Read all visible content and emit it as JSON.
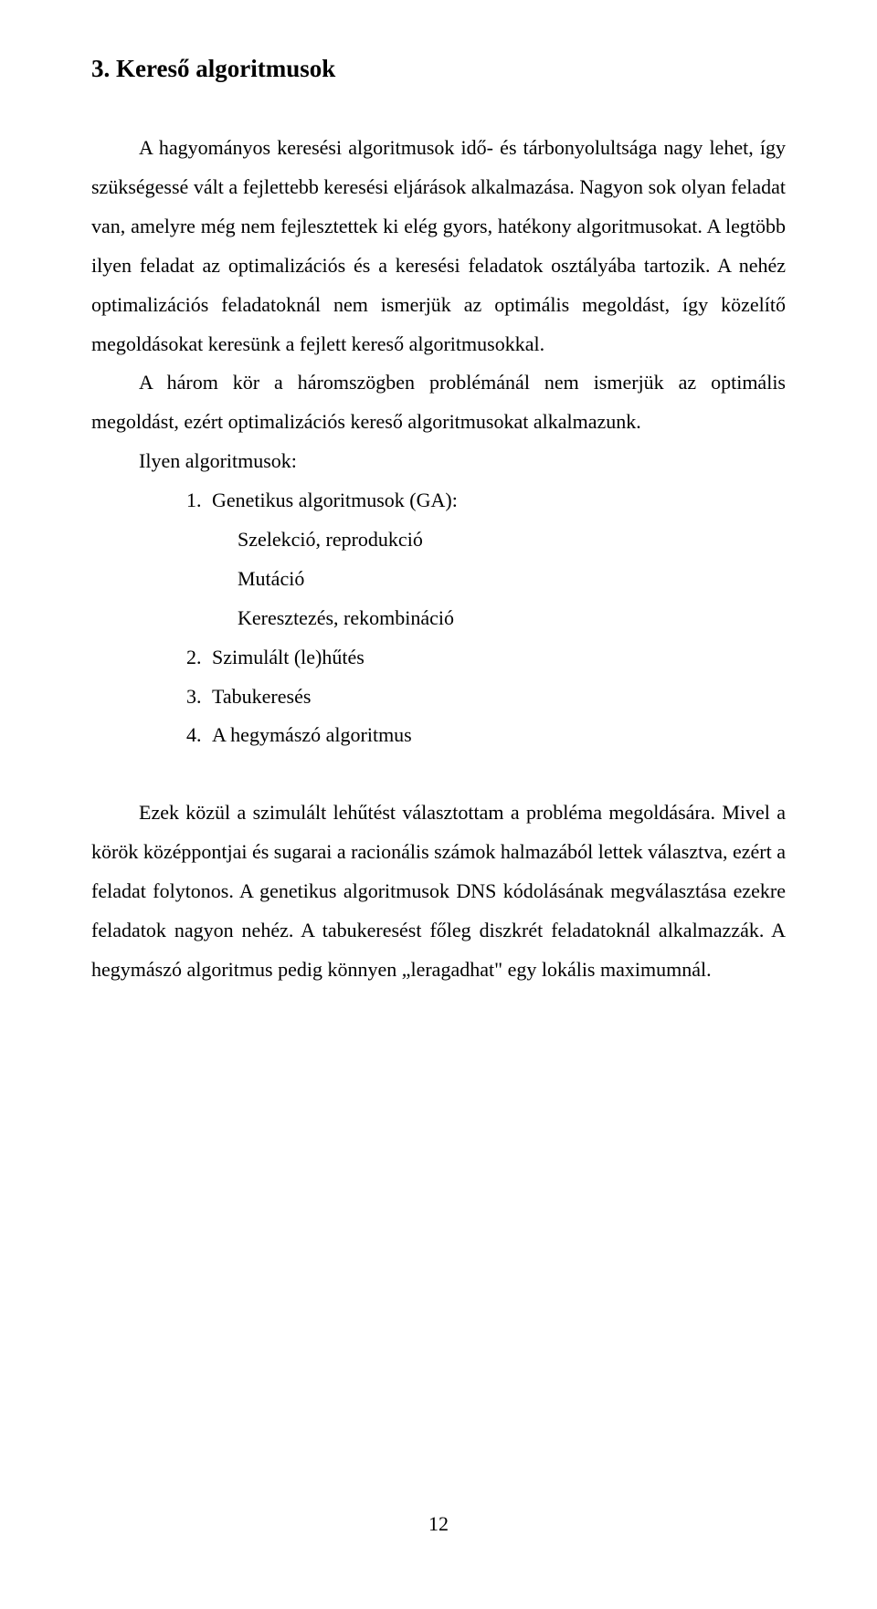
{
  "heading": "3. Kereső algoritmusok",
  "paragraphs": {
    "p1": "A hagyományos keresési algoritmusok idő- és tárbonyolultsága nagy lehet, így szükségessé vált a fejlettebb keresési eljárások alkalmazása. Nagyon sok olyan feladat van, amelyre még nem fejlesztettek ki elég gyors, hatékony algoritmusokat. A legtöbb ilyen feladat az optimalizációs és a keresési feladatok osztályába tartozik. A nehéz optimalizációs feladatoknál nem ismerjük az optimális megoldást, így közelítő megoldásokat keresünk a fejlett kereső algoritmusokkal.",
    "p2": "A három kör a háromszögben problémánál nem ismerjük az optimális megoldást, ezért optimalizációs kereső algoritmusokat alkalmazunk.",
    "list_intro": "Ilyen algoritmusok:",
    "p3": "Ezek közül a szimulált lehűtést választottam a probléma megoldására. Mivel a körök középpontjai és sugarai a racionális számok halmazából lettek választva, ezért a feladat folytonos. A genetikus algoritmusok DNS kódolásának megválasztása ezekre feladatok nagyon nehéz. A tabukeresést főleg diszkrét feladatoknál alkalmazzák. A hegymászó algoritmus pedig könnyen „leragadhat\" egy lokális maximumnál."
  },
  "list": {
    "items": [
      {
        "num": "1.",
        "text": "Genetikus algoritmusok (GA):"
      },
      {
        "num": "2.",
        "text": "Szimulált (le)hűtés"
      },
      {
        "num": "3.",
        "text": "Tabukeresés"
      },
      {
        "num": "4.",
        "text": "A hegymászó algoritmus"
      }
    ],
    "subitems": [
      "Szelekció, reprodukció",
      "Mutáció",
      "Keresztezés, rekombináció"
    ]
  },
  "page_number": "12"
}
